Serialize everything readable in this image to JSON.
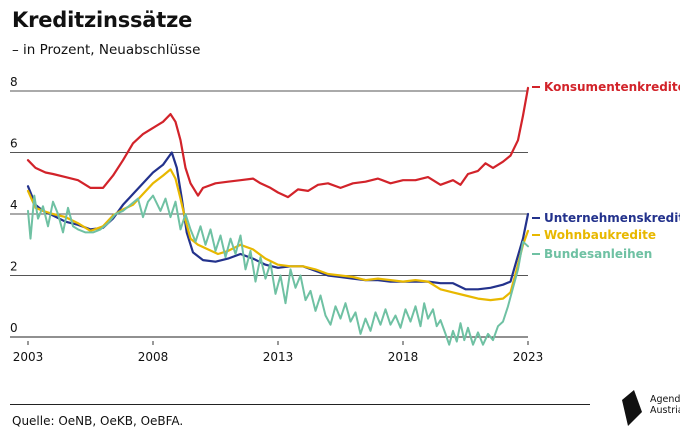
{
  "title": "Kreditzinssätze",
  "subtitle": "– in Prozent, Neuabschlüsse",
  "source": "Quelle: OeNB, OeKB, OeBFA.",
  "logo": {
    "line1": "Agenda",
    "line2": "Austria",
    "icon": "agenda-austria-logo-icon"
  },
  "chart_data": {
    "type": "line",
    "xlim": [
      2003,
      2023.5
    ],
    "ylim": [
      0,
      8.5
    ],
    "xticks": [
      "2003",
      "2008",
      "2013",
      "2018",
      "2023"
    ],
    "yticks": [
      "0",
      "2",
      "4",
      "6",
      "8"
    ],
    "grid": true,
    "legend": "right, labels at line ends",
    "series": [
      {
        "name": "Konsumentenkredite",
        "color": "#d2232a",
        "points": [
          [
            2003.0,
            5.75
          ],
          [
            2003.3,
            5.5
          ],
          [
            2003.7,
            5.35
          ],
          [
            2004.0,
            5.3
          ],
          [
            2004.5,
            5.2
          ],
          [
            2005.0,
            5.1
          ],
          [
            2005.5,
            4.85
          ],
          [
            2006.0,
            4.85
          ],
          [
            2006.4,
            5.25
          ],
          [
            2006.8,
            5.75
          ],
          [
            2007.2,
            6.3
          ],
          [
            2007.6,
            6.6
          ],
          [
            2008.0,
            6.8
          ],
          [
            2008.4,
            7.0
          ],
          [
            2008.7,
            7.25
          ],
          [
            2008.9,
            7.0
          ],
          [
            2009.1,
            6.4
          ],
          [
            2009.3,
            5.5
          ],
          [
            2009.5,
            5.0
          ],
          [
            2009.8,
            4.6
          ],
          [
            2010.0,
            4.85
          ],
          [
            2010.5,
            5.0
          ],
          [
            2011.0,
            5.05
          ],
          [
            2011.5,
            5.1
          ],
          [
            2012.0,
            5.15
          ],
          [
            2012.3,
            5.0
          ],
          [
            2012.7,
            4.85
          ],
          [
            2013.0,
            4.7
          ],
          [
            2013.4,
            4.55
          ],
          [
            2013.8,
            4.8
          ],
          [
            2014.2,
            4.75
          ],
          [
            2014.6,
            4.95
          ],
          [
            2015.0,
            5.0
          ],
          [
            2015.5,
            4.85
          ],
          [
            2016.0,
            5.0
          ],
          [
            2016.5,
            5.05
          ],
          [
            2017.0,
            5.15
          ],
          [
            2017.5,
            5.0
          ],
          [
            2018.0,
            5.1
          ],
          [
            2018.5,
            5.1
          ],
          [
            2019.0,
            5.2
          ],
          [
            2019.5,
            4.95
          ],
          [
            2020.0,
            5.1
          ],
          [
            2020.3,
            4.95
          ],
          [
            2020.6,
            5.3
          ],
          [
            2021.0,
            5.4
          ],
          [
            2021.3,
            5.65
          ],
          [
            2021.6,
            5.5
          ],
          [
            2022.0,
            5.7
          ],
          [
            2022.3,
            5.9
          ],
          [
            2022.6,
            6.4
          ],
          [
            2022.8,
            7.2
          ],
          [
            2023.0,
            8.1
          ]
        ]
      },
      {
        "name": "Unternehmenskredite",
        "color": "#23328c",
        "points": [
          [
            2003.0,
            4.9
          ],
          [
            2003.3,
            4.3
          ],
          [
            2003.6,
            4.1
          ],
          [
            2004.0,
            3.95
          ],
          [
            2004.5,
            3.75
          ],
          [
            2005.0,
            3.65
          ],
          [
            2005.5,
            3.5
          ],
          [
            2006.0,
            3.55
          ],
          [
            2006.4,
            3.85
          ],
          [
            2006.8,
            4.3
          ],
          [
            2007.2,
            4.65
          ],
          [
            2007.6,
            5.0
          ],
          [
            2008.0,
            5.35
          ],
          [
            2008.4,
            5.6
          ],
          [
            2008.75,
            6.0
          ],
          [
            2008.95,
            5.5
          ],
          [
            2009.15,
            4.5
          ],
          [
            2009.35,
            3.4
          ],
          [
            2009.6,
            2.75
          ],
          [
            2010.0,
            2.5
          ],
          [
            2010.5,
            2.45
          ],
          [
            2011.0,
            2.55
          ],
          [
            2011.5,
            2.7
          ],
          [
            2012.0,
            2.55
          ],
          [
            2012.5,
            2.35
          ],
          [
            2013.0,
            2.25
          ],
          [
            2013.5,
            2.3
          ],
          [
            2014.0,
            2.3
          ],
          [
            2014.5,
            2.15
          ],
          [
            2015.0,
            2.0
          ],
          [
            2015.5,
            1.95
          ],
          [
            2016.0,
            1.9
          ],
          [
            2016.5,
            1.85
          ],
          [
            2017.0,
            1.85
          ],
          [
            2017.5,
            1.8
          ],
          [
            2018.0,
            1.8
          ],
          [
            2018.5,
            1.8
          ],
          [
            2019.0,
            1.8
          ],
          [
            2019.5,
            1.75
          ],
          [
            2020.0,
            1.75
          ],
          [
            2020.5,
            1.55
          ],
          [
            2021.0,
            1.55
          ],
          [
            2021.5,
            1.6
          ],
          [
            2022.0,
            1.7
          ],
          [
            2022.3,
            1.8
          ],
          [
            2022.55,
            2.5
          ],
          [
            2022.8,
            3.2
          ],
          [
            2023.0,
            4.0
          ]
        ]
      },
      {
        "name": "Wohnbaukredite",
        "color": "#e8b800",
        "points": [
          [
            2003.0,
            4.75
          ],
          [
            2003.3,
            4.2
          ],
          [
            2003.6,
            4.1
          ],
          [
            2004.0,
            4.0
          ],
          [
            2004.5,
            3.9
          ],
          [
            2005.0,
            3.7
          ],
          [
            2005.5,
            3.45
          ],
          [
            2006.0,
            3.6
          ],
          [
            2006.4,
            3.95
          ],
          [
            2006.8,
            4.15
          ],
          [
            2007.2,
            4.3
          ],
          [
            2007.6,
            4.65
          ],
          [
            2008.0,
            5.0
          ],
          [
            2008.4,
            5.25
          ],
          [
            2008.7,
            5.45
          ],
          [
            2008.9,
            5.15
          ],
          [
            2009.1,
            4.5
          ],
          [
            2009.3,
            3.8
          ],
          [
            2009.5,
            3.2
          ],
          [
            2009.8,
            3.0
          ],
          [
            2010.2,
            2.85
          ],
          [
            2010.6,
            2.7
          ],
          [
            2011.0,
            2.8
          ],
          [
            2011.5,
            3.0
          ],
          [
            2012.0,
            2.85
          ],
          [
            2012.5,
            2.55
          ],
          [
            2013.0,
            2.35
          ],
          [
            2013.5,
            2.3
          ],
          [
            2014.0,
            2.3
          ],
          [
            2014.5,
            2.2
          ],
          [
            2015.0,
            2.05
          ],
          [
            2015.5,
            2.0
          ],
          [
            2016.0,
            1.95
          ],
          [
            2016.5,
            1.85
          ],
          [
            2017.0,
            1.9
          ],
          [
            2017.5,
            1.85
          ],
          [
            2018.0,
            1.8
          ],
          [
            2018.5,
            1.85
          ],
          [
            2019.0,
            1.8
          ],
          [
            2019.5,
            1.55
          ],
          [
            2020.0,
            1.45
          ],
          [
            2020.5,
            1.35
          ],
          [
            2021.0,
            1.25
          ],
          [
            2021.5,
            1.2
          ],
          [
            2022.0,
            1.25
          ],
          [
            2022.3,
            1.45
          ],
          [
            2022.55,
            2.2
          ],
          [
            2022.8,
            3.0
          ],
          [
            2023.0,
            3.45
          ]
        ]
      },
      {
        "name": "Bundesanleihen",
        "color": "#6fc1a3",
        "points": [
          [
            2003.0,
            4.1
          ],
          [
            2003.1,
            3.2
          ],
          [
            2003.25,
            4.6
          ],
          [
            2003.4,
            3.85
          ],
          [
            2003.6,
            4.25
          ],
          [
            2003.8,
            3.6
          ],
          [
            2004.0,
            4.4
          ],
          [
            2004.2,
            4.0
          ],
          [
            2004.4,
            3.4
          ],
          [
            2004.6,
            4.2
          ],
          [
            2004.8,
            3.6
          ],
          [
            2005.0,
            3.5
          ],
          [
            2005.3,
            3.4
          ],
          [
            2005.6,
            3.4
          ],
          [
            2005.9,
            3.5
          ],
          [
            2006.2,
            3.7
          ],
          [
            2006.5,
            4.0
          ],
          [
            2006.8,
            4.1
          ],
          [
            2007.1,
            4.3
          ],
          [
            2007.4,
            4.5
          ],
          [
            2007.6,
            3.9
          ],
          [
            2007.8,
            4.4
          ],
          [
            2008.0,
            4.6
          ],
          [
            2008.3,
            4.1
          ],
          [
            2008.5,
            4.5
          ],
          [
            2008.7,
            3.9
          ],
          [
            2008.9,
            4.4
          ],
          [
            2009.1,
            3.5
          ],
          [
            2009.3,
            4.0
          ],
          [
            2009.5,
            3.5
          ],
          [
            2009.7,
            3.1
          ],
          [
            2009.9,
            3.6
          ],
          [
            2010.1,
            3.0
          ],
          [
            2010.3,
            3.5
          ],
          [
            2010.5,
            2.8
          ],
          [
            2010.7,
            3.3
          ],
          [
            2010.9,
            2.6
          ],
          [
            2011.1,
            3.2
          ],
          [
            2011.3,
            2.7
          ],
          [
            2011.5,
            3.3
          ],
          [
            2011.7,
            2.2
          ],
          [
            2011.9,
            2.8
          ],
          [
            2012.1,
            1.8
          ],
          [
            2012.3,
            2.6
          ],
          [
            2012.5,
            1.9
          ],
          [
            2012.7,
            2.4
          ],
          [
            2012.9,
            1.4
          ],
          [
            2013.1,
            2.0
          ],
          [
            2013.3,
            1.1
          ],
          [
            2013.5,
            2.2
          ],
          [
            2013.7,
            1.6
          ],
          [
            2013.9,
            2.0
          ],
          [
            2014.1,
            1.2
          ],
          [
            2014.3,
            1.5
          ],
          [
            2014.5,
            0.85
          ],
          [
            2014.7,
            1.35
          ],
          [
            2014.9,
            0.7
          ],
          [
            2015.1,
            0.4
          ],
          [
            2015.3,
            1.0
          ],
          [
            2015.5,
            0.6
          ],
          [
            2015.7,
            1.1
          ],
          [
            2015.9,
            0.5
          ],
          [
            2016.1,
            0.8
          ],
          [
            2016.3,
            0.1
          ],
          [
            2016.5,
            0.6
          ],
          [
            2016.7,
            0.2
          ],
          [
            2016.9,
            0.8
          ],
          [
            2017.1,
            0.4
          ],
          [
            2017.3,
            0.9
          ],
          [
            2017.5,
            0.4
          ],
          [
            2017.7,
            0.7
          ],
          [
            2017.9,
            0.3
          ],
          [
            2018.1,
            0.9
          ],
          [
            2018.3,
            0.5
          ],
          [
            2018.5,
            1.0
          ],
          [
            2018.7,
            0.35
          ],
          [
            2018.85,
            1.1
          ],
          [
            2019.0,
            0.6
          ],
          [
            2019.2,
            0.9
          ],
          [
            2019.35,
            0.35
          ],
          [
            2019.5,
            0.55
          ],
          [
            2019.7,
            0.1
          ],
          [
            2019.85,
            -0.25
          ],
          [
            2020.0,
            0.2
          ],
          [
            2020.15,
            -0.15
          ],
          [
            2020.3,
            0.45
          ],
          [
            2020.45,
            -0.1
          ],
          [
            2020.6,
            0.3
          ],
          [
            2020.8,
            -0.25
          ],
          [
            2021.0,
            0.15
          ],
          [
            2021.2,
            -0.25
          ],
          [
            2021.4,
            0.1
          ],
          [
            2021.6,
            -0.1
          ],
          [
            2021.8,
            0.35
          ],
          [
            2022.0,
            0.5
          ],
          [
            2022.2,
            1.0
          ],
          [
            2022.4,
            1.6
          ],
          [
            2022.6,
            2.2
          ],
          [
            2022.8,
            3.1
          ],
          [
            2023.0,
            2.95
          ]
        ]
      }
    ]
  }
}
